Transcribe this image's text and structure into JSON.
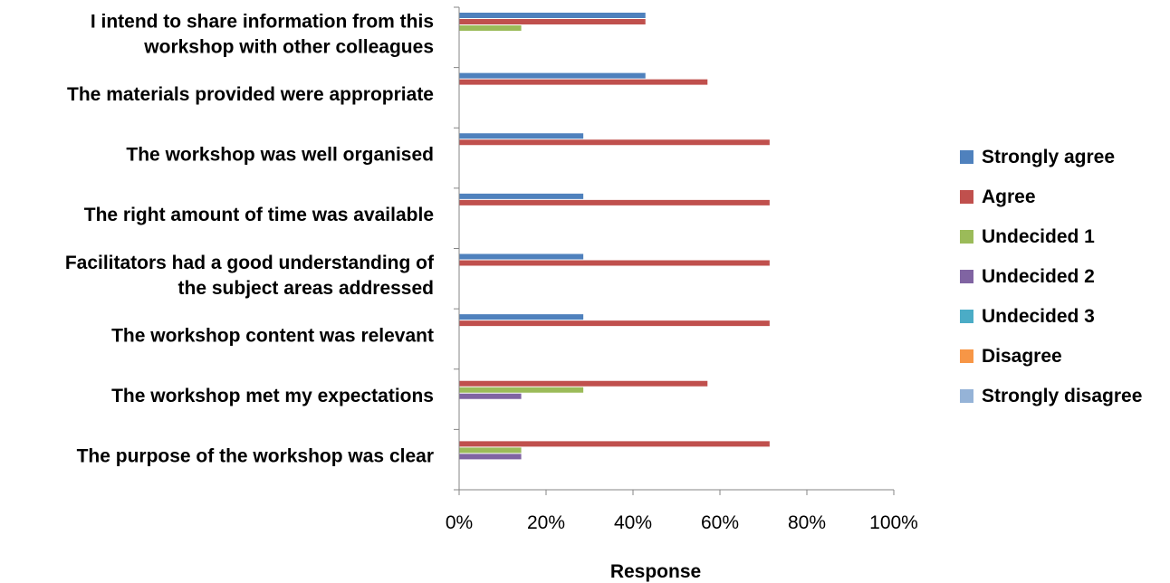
{
  "chart_data": {
    "type": "bar",
    "orientation": "horizontal",
    "categories": [
      [
        "I intend to share information from this",
        "workshop with other colleagues"
      ],
      [
        "The materials provided were appropriate"
      ],
      [
        "The workshop was well organised"
      ],
      [
        "The right amount of time was available"
      ],
      [
        "Facilitators had a good understanding of",
        "the subject areas addressed"
      ],
      [
        "The workshop content was relevant"
      ],
      [
        "The workshop met my expectations"
      ],
      [
        "The purpose of the workshop was clear"
      ]
    ],
    "series": [
      {
        "name": "Strongly agree",
        "color": "#4F81BD",
        "values": [
          0.4286,
          0.4286,
          0.2857,
          0.2857,
          0.2857,
          0.2857,
          0,
          0
        ]
      },
      {
        "name": "Agree",
        "color": "#C0504D",
        "values": [
          0.4286,
          0.5714,
          0.7143,
          0.7143,
          0.7143,
          0.7143,
          0.5714,
          0.7143
        ]
      },
      {
        "name": "Undecided 1",
        "color": "#9BBB59",
        "values": [
          0.1429,
          0,
          0,
          0,
          0,
          0,
          0.2857,
          0.1429
        ]
      },
      {
        "name": "Undecided 2",
        "color": "#8064A2",
        "values": [
          0,
          0,
          0,
          0,
          0,
          0,
          0.1429,
          0.1429
        ]
      },
      {
        "name": "Undecided 3",
        "color": "#4BACC6",
        "values": [
          0,
          0,
          0,
          0,
          0,
          0,
          0,
          0
        ]
      },
      {
        "name": "Disagree",
        "color": "#F79646",
        "values": [
          0,
          0,
          0,
          0,
          0,
          0,
          0,
          0
        ]
      },
      {
        "name": "Strongly disagree",
        "color": "#95B3D7",
        "values": [
          0,
          0,
          0,
          0,
          0,
          0,
          0,
          0
        ]
      }
    ],
    "xlim": [
      0,
      1
    ],
    "xticks": [
      "0%",
      "20%",
      "40%",
      "60%",
      "80%",
      "100%"
    ],
    "xlabel": "Response",
    "ylabel": "",
    "title": "",
    "grid": false,
    "legend": "right"
  }
}
